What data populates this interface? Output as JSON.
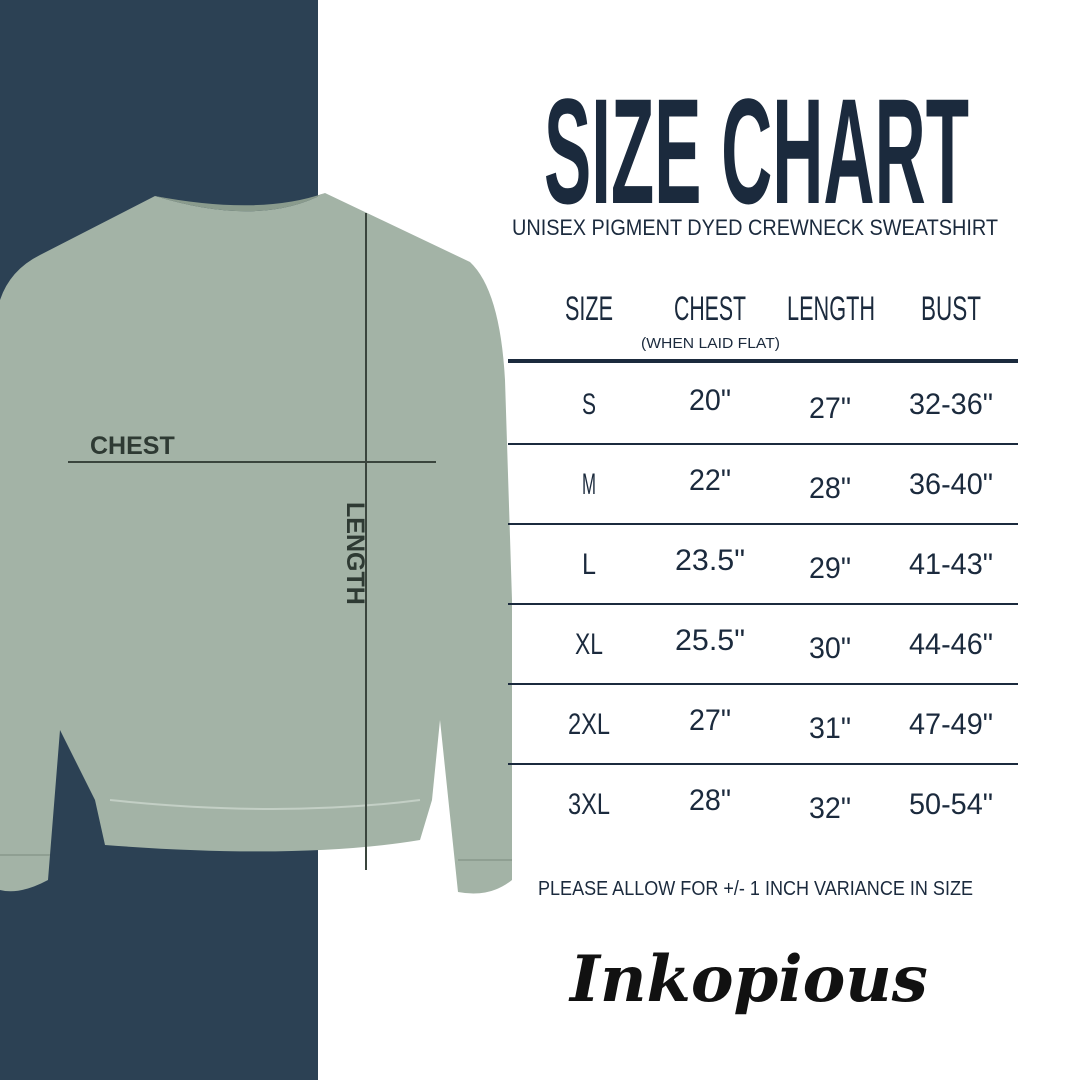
{
  "title": "SIZE CHART",
  "subtitle": "UNISEX PIGMENT DYED CREWNECK SWEATSHIRT",
  "colors": {
    "navy_panel": "#2c4154",
    "text": "#1b2a3d",
    "sweatshirt": "#a3b3a6"
  },
  "diagram": {
    "chest_label": "CHEST",
    "length_label": "LENGTH"
  },
  "table": {
    "headers": [
      "SIZE",
      "CHEST",
      "LENGTH",
      "BUST"
    ],
    "chest_note": "(WHEN LAID FLAT)",
    "rows": [
      [
        "S",
        "20\"",
        "27\"",
        "32-36\""
      ],
      [
        "M",
        "22\"",
        "28\"",
        "36-40\""
      ],
      [
        "L",
        "23.5\"",
        "29\"",
        "41-43\""
      ],
      [
        "XL",
        "25.5\"",
        "30\"",
        "44-46\""
      ],
      [
        "2XL",
        "27\"",
        "31\"",
        "47-49\""
      ],
      [
        "3XL",
        "28\"",
        "32\"",
        "50-54\""
      ]
    ]
  },
  "disclaimer": "PLEASE ALLOW FOR +/- 1 INCH VARIANCE IN SIZE",
  "logo": "Inkopious"
}
